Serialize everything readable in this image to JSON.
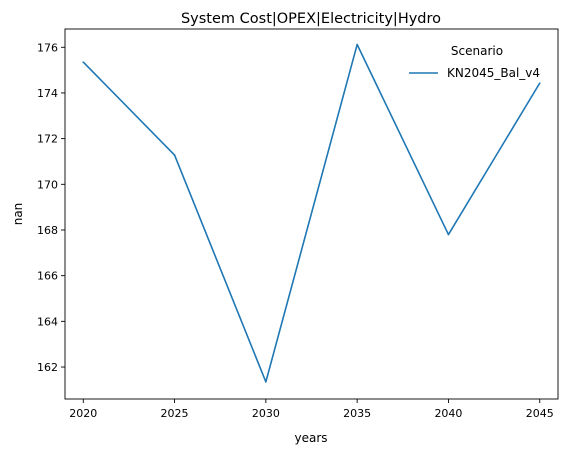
{
  "chart_data": {
    "type": "line",
    "title": "System Cost|OPEX|Electricity|Hydro",
    "xlabel": "years",
    "ylabel": "nan",
    "x": [
      2020,
      2025,
      2030,
      2035,
      2040,
      2045
    ],
    "x_ticks": [
      "2020",
      "2025",
      "2030",
      "2035",
      "2040",
      "2045"
    ],
    "y_ticks": [
      "162",
      "164",
      "166",
      "168",
      "170",
      "172",
      "174",
      "176"
    ],
    "xlim": [
      2019,
      2046
    ],
    "ylim": [
      160.6,
      176.8
    ],
    "grid": false,
    "legend": {
      "title": "Scenario",
      "placement": "top-right"
    },
    "series": [
      {
        "name": "KN2045_Bal_v4",
        "color": "#1f77b4",
        "values": [
          175.35,
          171.28,
          161.35,
          176.12,
          167.8,
          174.43
        ]
      }
    ]
  }
}
